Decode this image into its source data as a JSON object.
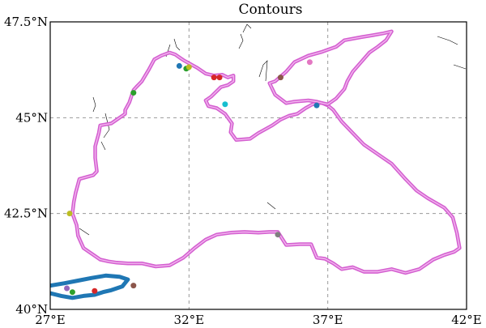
{
  "chart_data": {
    "type": "map",
    "title": "Contours",
    "xlim": [
      27,
      42
    ],
    "ylim": [
      40,
      47.5
    ],
    "x_ticks": [
      {
        "value": 27,
        "label": "27°E"
      },
      {
        "value": 32,
        "label": "32°E"
      },
      {
        "value": 37,
        "label": "37°E"
      },
      {
        "value": 42,
        "label": "42°E"
      }
    ],
    "y_ticks": [
      {
        "value": 40,
        "label": "40°N"
      },
      {
        "value": 42.5,
        "label": "42.5°N"
      },
      {
        "value": 45,
        "label": "45°N"
      },
      {
        "value": 47.5,
        "label": "47.5°N"
      }
    ],
    "grid": true,
    "colors": {
      "main_contour": "#d45fd0",
      "main_contour_core": "#f2b6ef",
      "marmara_contour": "#1f77b4",
      "coastline": "#000000",
      "grid": "#9a9a9a"
    },
    "contours": [
      {
        "id": "black-sea",
        "color": "#d45fd0",
        "points": [
          [
            28.68,
            43.6
          ],
          [
            28.62,
            43.95
          ],
          [
            28.62,
            44.25
          ],
          [
            28.75,
            44.6
          ],
          [
            28.8,
            44.8
          ],
          [
            29.2,
            44.85
          ],
          [
            29.7,
            45.1
          ],
          [
            29.7,
            45.2
          ],
          [
            29.85,
            45.4
          ],
          [
            30.0,
            45.72
          ],
          [
            30.1,
            45.8
          ],
          [
            30.3,
            45.95
          ],
          [
            30.55,
            46.25
          ],
          [
            30.75,
            46.52
          ],
          [
            31.0,
            46.62
          ],
          [
            31.3,
            46.7
          ],
          [
            31.5,
            46.65
          ],
          [
            31.7,
            46.55
          ],
          [
            31.8,
            46.5
          ],
          [
            32.0,
            46.42
          ],
          [
            32.3,
            46.3
          ],
          [
            32.6,
            46.15
          ],
          [
            32.9,
            46.1
          ],
          [
            33.2,
            46.12
          ],
          [
            33.4,
            46.05
          ],
          [
            33.6,
            46.1
          ],
          [
            33.6,
            45.95
          ],
          [
            33.4,
            45.85
          ],
          [
            33.15,
            45.8
          ],
          [
            32.8,
            45.55
          ],
          [
            32.6,
            45.45
          ],
          [
            32.7,
            45.3
          ],
          [
            33.0,
            45.25
          ],
          [
            33.3,
            45.1
          ],
          [
            33.55,
            44.85
          ],
          [
            33.5,
            44.62
          ],
          [
            33.7,
            44.42
          ],
          [
            34.2,
            44.45
          ],
          [
            34.5,
            44.6
          ],
          [
            35.0,
            44.8
          ],
          [
            35.3,
            44.95
          ],
          [
            35.6,
            45.05
          ],
          [
            35.9,
            45.1
          ],
          [
            36.2,
            45.25
          ],
          [
            36.45,
            45.35
          ],
          [
            36.62,
            45.38
          ],
          [
            36.8,
            45.38
          ],
          [
            37.0,
            45.32
          ],
          [
            37.2,
            45.2
          ],
          [
            37.5,
            44.9
          ],
          [
            37.9,
            44.6
          ],
          [
            38.3,
            44.3
          ],
          [
            38.8,
            44.05
          ],
          [
            39.3,
            43.8
          ],
          [
            39.8,
            43.4
          ],
          [
            40.2,
            43.1
          ],
          [
            40.6,
            42.9
          ],
          [
            41.2,
            42.65
          ],
          [
            41.5,
            42.4
          ],
          [
            41.65,
            42.0
          ],
          [
            41.75,
            41.6
          ],
          [
            41.55,
            41.5
          ],
          [
            41.2,
            41.42
          ],
          [
            40.8,
            41.3
          ],
          [
            40.3,
            41.05
          ],
          [
            39.8,
            40.95
          ],
          [
            39.3,
            41.05
          ],
          [
            38.8,
            40.98
          ],
          [
            38.3,
            40.98
          ],
          [
            37.9,
            41.1
          ],
          [
            37.5,
            41.05
          ],
          [
            37.2,
            41.2
          ],
          [
            36.9,
            41.32
          ],
          [
            36.6,
            41.35
          ],
          [
            36.4,
            41.7
          ],
          [
            36.0,
            41.7
          ],
          [
            35.5,
            41.68
          ],
          [
            35.2,
            42.02
          ],
          [
            34.9,
            42.02
          ],
          [
            34.5,
            42.0
          ],
          [
            34.0,
            42.02
          ],
          [
            33.5,
            42.0
          ],
          [
            33.0,
            41.95
          ],
          [
            32.6,
            41.82
          ],
          [
            32.2,
            41.6
          ],
          [
            31.8,
            41.35
          ],
          [
            31.3,
            41.15
          ],
          [
            30.8,
            41.12
          ],
          [
            30.3,
            41.2
          ],
          [
            29.8,
            41.2
          ],
          [
            29.4,
            41.22
          ],
          [
            29.1,
            41.25
          ],
          [
            28.8,
            41.3
          ],
          [
            28.5,
            41.45
          ],
          [
            28.2,
            41.6
          ],
          [
            28.0,
            41.92
          ],
          [
            27.95,
            42.2
          ],
          [
            27.8,
            42.5
          ],
          [
            27.85,
            42.8
          ],
          [
            27.92,
            43.05
          ],
          [
            28.05,
            43.4
          ],
          [
            28.55,
            43.5
          ],
          [
            28.68,
            43.6
          ]
        ]
      },
      {
        "id": "azov-sea",
        "color": "#d45fd0",
        "points": [
          [
            35.1,
            45.6
          ],
          [
            34.9,
            45.9
          ],
          [
            35.1,
            45.95
          ],
          [
            35.5,
            46.2
          ],
          [
            35.8,
            46.45
          ],
          [
            36.3,
            46.62
          ],
          [
            36.8,
            46.72
          ],
          [
            37.3,
            46.85
          ],
          [
            37.6,
            47.02
          ],
          [
            38.2,
            47.1
          ],
          [
            38.6,
            47.15
          ],
          [
            39.0,
            47.2
          ],
          [
            39.3,
            47.25
          ],
          [
            39.1,
            47.02
          ],
          [
            38.8,
            46.85
          ],
          [
            38.5,
            46.7
          ],
          [
            38.2,
            46.45
          ],
          [
            37.9,
            46.2
          ],
          [
            37.7,
            45.95
          ],
          [
            37.6,
            45.75
          ],
          [
            37.3,
            45.5
          ],
          [
            37.0,
            45.35
          ],
          [
            36.8,
            45.38
          ],
          [
            36.6,
            45.42
          ],
          [
            36.3,
            45.45
          ],
          [
            35.8,
            45.42
          ],
          [
            35.5,
            45.38
          ],
          [
            35.1,
            45.6
          ]
        ]
      }
    ],
    "marmara_contour": {
      "color": "#1f77b4",
      "points": [
        [
          27.0,
          40.62
        ],
        [
          27.5,
          40.68
        ],
        [
          28.0,
          40.75
        ],
        [
          28.5,
          40.82
        ],
        [
          29.0,
          40.88
        ],
        [
          29.5,
          40.85
        ],
        [
          29.8,
          40.78
        ],
        [
          29.6,
          40.6
        ],
        [
          29.2,
          40.5
        ],
        [
          28.9,
          40.45
        ],
        [
          28.6,
          40.38
        ],
        [
          28.2,
          40.35
        ],
        [
          27.8,
          40.3
        ],
        [
          27.4,
          40.35
        ],
        [
          27.0,
          40.42
        ]
      ]
    },
    "markers": [
      {
        "lon": 31.65,
        "lat": 46.35,
        "color": "#1f77b4"
      },
      {
        "lon": 31.9,
        "lat": 46.28,
        "color": "#2ca02c"
      },
      {
        "lon": 32.0,
        "lat": 46.32,
        "color": "#bcbd22"
      },
      {
        "lon": 32.9,
        "lat": 46.05,
        "color": "#d62728"
      },
      {
        "lon": 33.1,
        "lat": 46.05,
        "color": "#d62728"
      },
      {
        "lon": 30.0,
        "lat": 45.65,
        "color": "#2ca02c"
      },
      {
        "lon": 33.3,
        "lat": 45.35,
        "color": "#17becf"
      },
      {
        "lon": 35.3,
        "lat": 46.05,
        "color": "#8c564b"
      },
      {
        "lon": 36.35,
        "lat": 46.45,
        "color": "#e377c2"
      },
      {
        "lon": 36.6,
        "lat": 45.32,
        "color": "#1f77b4"
      },
      {
        "lon": 27.7,
        "lat": 42.5,
        "color": "#bcbd22"
      },
      {
        "lon": 27.6,
        "lat": 40.55,
        "color": "#9467bd"
      },
      {
        "lon": 27.8,
        "lat": 40.45,
        "color": "#2ca02c"
      },
      {
        "lon": 28.6,
        "lat": 40.48,
        "color": "#d62728"
      },
      {
        "lon": 30.0,
        "lat": 40.62,
        "color": "#8c564b"
      },
      {
        "lon": 35.2,
        "lat": 41.95,
        "color": "#7f7f7f"
      }
    ]
  }
}
